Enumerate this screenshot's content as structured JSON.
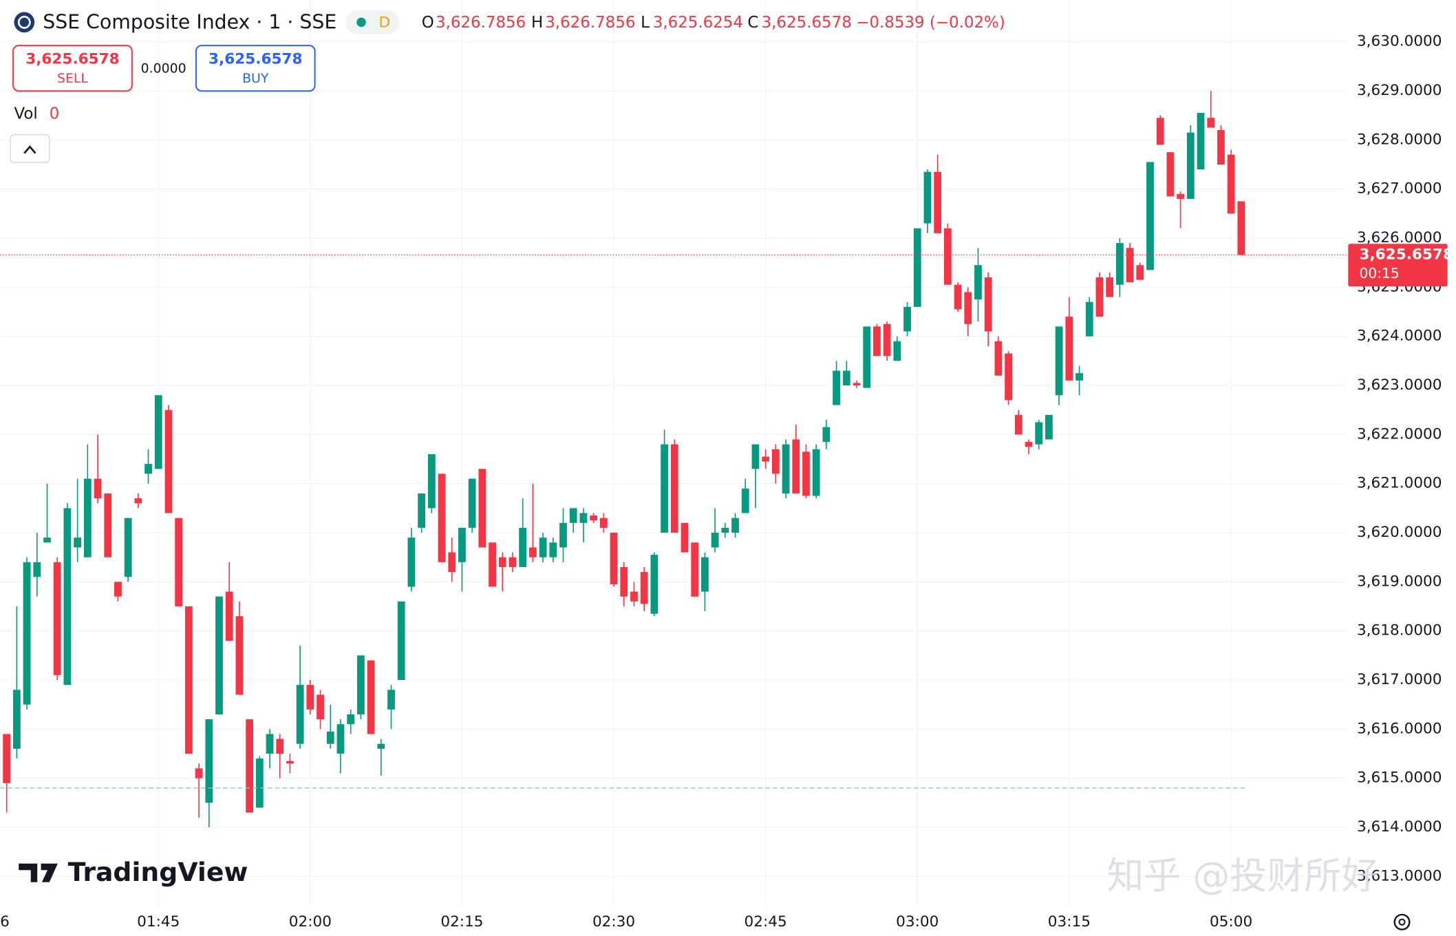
{
  "header": {
    "symbol": "SSE Composite Index · 1 · SSE",
    "interval_badge": "D",
    "open_label": "O",
    "open": "3,626.7856",
    "high_label": "H",
    "high": "3,626.7856",
    "low_label": "L",
    "low": "3,625.6254",
    "close_label": "C",
    "close": "3,625.6578",
    "change": "−0.8539 (−0.02%)"
  },
  "trade": {
    "sell_price": "3,625.6578",
    "sell_label": "SELL",
    "spread": "0.0000",
    "buy_price": "3,625.6578",
    "buy_label": "BUY"
  },
  "volume": {
    "label": "Vol",
    "value": "0"
  },
  "branding": {
    "logo": "TradingView",
    "watermark": "知乎 @投财所好"
  },
  "chart_data": {
    "type": "candlestick",
    "up_color": "#089981",
    "down_color": "#f23645",
    "ylim": [
      3612.41,
      3630.85
    ],
    "yticks": [
      {
        "value": 3613,
        "label": "3,613.0000"
      },
      {
        "value": 3614,
        "label": "3,614.0000"
      },
      {
        "value": 3615,
        "label": "3,615.0000"
      },
      {
        "value": 3616,
        "label": "3,616.0000"
      },
      {
        "value": 3617,
        "label": "3,617.0000"
      },
      {
        "value": 3618,
        "label": "3,618.0000"
      },
      {
        "value": 3619,
        "label": "3,619.0000"
      },
      {
        "value": 3620,
        "label": "3,620.0000"
      },
      {
        "value": 3621,
        "label": "3,621.0000"
      },
      {
        "value": 3622,
        "label": "3,622.0000"
      },
      {
        "value": 3623,
        "label": "3,623.0000"
      },
      {
        "value": 3624,
        "label": "3,624.0000"
      },
      {
        "value": 3625,
        "label": "3,625.0000"
      },
      {
        "value": 3626,
        "label": "3,626.0000"
      },
      {
        "value": 3627,
        "label": "3,627.0000"
      },
      {
        "value": 3628,
        "label": "3,628.0000"
      },
      {
        "value": 3629,
        "label": "3,629.0000"
      },
      {
        "value": 3630,
        "label": "3,630.0000"
      }
    ],
    "grid": true,
    "last_price": {
      "value": 3625.6578,
      "label": "3,625.6578",
      "countdown": "00:15"
    },
    "reference_line": 3614.8,
    "categories": [
      "6",
      null,
      null,
      null,
      null,
      null,
      null,
      null,
      null,
      null,
      null,
      null,
      null,
      null,
      null,
      "01:45",
      null,
      null,
      null,
      null,
      null,
      null,
      null,
      null,
      null,
      null,
      null,
      null,
      null,
      null,
      "02:00",
      null,
      null,
      null,
      null,
      null,
      null,
      null,
      null,
      null,
      null,
      null,
      null,
      null,
      null,
      "02:15",
      null,
      null,
      null,
      null,
      null,
      null,
      null,
      null,
      null,
      null,
      null,
      null,
      null,
      null,
      "02:30",
      null,
      null,
      null,
      null,
      null,
      null,
      null,
      null,
      null,
      null,
      null,
      null,
      null,
      null,
      "02:45",
      null,
      null,
      null,
      null,
      null,
      null,
      null,
      null,
      null,
      null,
      null,
      null,
      null,
      null,
      "03:00",
      null,
      null,
      null,
      null,
      null,
      null,
      null,
      null,
      null,
      null,
      null,
      null,
      null,
      null,
      "03:15",
      null,
      null,
      null,
      null,
      null,
      null,
      null,
      null,
      null,
      null,
      null,
      null,
      null,
      null,
      null,
      "05:00",
      null
    ],
    "ohlc": [
      [
        3615.9,
        3615.9,
        3614.3,
        3614.9
      ],
      [
        3615.6,
        3618.5,
        3615.4,
        3616.8
      ],
      [
        3616.5,
        3619.5,
        3616.4,
        3619.4
      ],
      [
        3619.1,
        3620.0,
        3618.7,
        3619.4
      ],
      [
        3619.8,
        3621.0,
        3619.8,
        3619.9
      ],
      [
        3619.4,
        3619.5,
        3617.0,
        3617.1
      ],
      [
        3616.9,
        3620.6,
        3616.9,
        3620.5
      ],
      [
        3619.7,
        3621.1,
        3619.4,
        3619.9
      ],
      [
        3619.5,
        3621.8,
        3619.5,
        3621.1
      ],
      [
        3621.1,
        3622.0,
        3620.6,
        3620.7
      ],
      [
        3620.8,
        3620.8,
        3619.5,
        3619.5
      ],
      [
        3619.0,
        3619.0,
        3618.6,
        3618.7
      ],
      [
        3619.1,
        3620.3,
        3619.0,
        3620.3
      ],
      [
        3620.7,
        3620.8,
        3620.5,
        3620.6
      ],
      [
        3621.2,
        3621.7,
        3621.0,
        3621.4
      ],
      [
        3621.3,
        3622.8,
        3621.3,
        3622.8
      ],
      [
        3622.5,
        3622.6,
        3620.4,
        3620.4
      ],
      [
        3620.3,
        3620.3,
        3618.5,
        3618.5
      ],
      [
        3618.5,
        3618.5,
        3615.5,
        3615.5
      ],
      [
        3615.2,
        3615.3,
        3614.2,
        3615.0
      ],
      [
        3614.5,
        3616.2,
        3614.0,
        3616.2
      ],
      [
        3616.3,
        3618.7,
        3616.3,
        3618.7
      ],
      [
        3618.8,
        3619.4,
        3617.8,
        3617.8
      ],
      [
        3618.3,
        3618.6,
        3616.7,
        3616.7
      ],
      [
        3616.2,
        3616.2,
        3614.3,
        3614.3
      ],
      [
        3614.4,
        3615.45,
        3614.4,
        3615.4
      ],
      [
        3615.5,
        3616.0,
        3615.2,
        3615.9
      ],
      [
        3615.8,
        3615.9,
        3615.0,
        3615.5
      ],
      [
        3615.35,
        3615.5,
        3615.1,
        3615.3
      ],
      [
        3615.7,
        3617.7,
        3615.6,
        3616.9
      ],
      [
        3616.9,
        3617.0,
        3616.3,
        3616.4
      ],
      [
        3616.7,
        3616.8,
        3616.0,
        3616.2
      ],
      [
        3615.7,
        3616.5,
        3615.6,
        3615.95
      ],
      [
        3615.5,
        3616.2,
        3615.1,
        3616.1
      ],
      [
        3616.1,
        3616.4,
        3615.9,
        3616.3
      ],
      [
        3616.3,
        3617.5,
        3616.2,
        3617.5
      ],
      [
        3617.4,
        3617.4,
        3615.9,
        3615.9
      ],
      [
        3615.6,
        3615.8,
        3615.05,
        3615.7
      ],
      [
        3616.4,
        3616.9,
        3616.0,
        3616.8
      ],
      [
        3617.0,
        3618.6,
        3617.0,
        3618.6
      ],
      [
        3618.9,
        3620.1,
        3618.8,
        3619.9
      ],
      [
        3620.1,
        3620.8,
        3620.0,
        3620.8
      ],
      [
        3620.5,
        3621.6,
        3620.4,
        3621.6
      ],
      [
        3621.2,
        3621.2,
        3619.4,
        3619.4
      ],
      [
        3619.6,
        3619.9,
        3619.0,
        3619.2
      ],
      [
        3619.4,
        3620.1,
        3618.8,
        3620.1
      ],
      [
        3620.1,
        3621.1,
        3620.0,
        3621.1
      ],
      [
        3621.3,
        3621.3,
        3619.7,
        3619.7
      ],
      [
        3619.8,
        3619.8,
        3618.9,
        3618.9
      ],
      [
        3619.5,
        3619.6,
        3618.8,
        3619.3
      ],
      [
        3619.5,
        3619.6,
        3619.2,
        3619.3
      ],
      [
        3619.3,
        3620.7,
        3619.3,
        3620.1
      ],
      [
        3619.7,
        3621.0,
        3619.4,
        3619.5
      ],
      [
        3619.5,
        3620.0,
        3619.4,
        3619.9
      ],
      [
        3619.5,
        3619.9,
        3619.4,
        3619.8
      ],
      [
        3619.7,
        3620.5,
        3619.4,
        3620.2
      ],
      [
        3620.2,
        3620.5,
        3620.0,
        3620.5
      ],
      [
        3620.2,
        3620.5,
        3619.8,
        3620.4
      ],
      [
        3620.35,
        3620.4,
        3620.2,
        3620.25
      ],
      [
        3620.3,
        3620.4,
        3620.0,
        3620.1
      ],
      [
        3620.0,
        3620.0,
        3618.9,
        3618.95
      ],
      [
        3619.3,
        3619.4,
        3618.5,
        3618.7
      ],
      [
        3618.8,
        3619.0,
        3618.5,
        3618.6
      ],
      [
        3619.2,
        3619.3,
        3618.4,
        3618.55
      ],
      [
        3618.35,
        3619.6,
        3618.3,
        3619.55
      ],
      [
        3620.0,
        3622.1,
        3620.0,
        3621.8
      ],
      [
        3621.8,
        3621.9,
        3620.0,
        3620.0
      ],
      [
        3620.2,
        3620.2,
        3619.6,
        3619.6
      ],
      [
        3619.8,
        3619.8,
        3618.7,
        3618.7
      ],
      [
        3618.8,
        3619.6,
        3618.4,
        3619.5
      ],
      [
        3619.7,
        3620.5,
        3619.6,
        3620.0
      ],
      [
        3620.0,
        3620.2,
        3619.9,
        3620.1
      ],
      [
        3620.0,
        3620.4,
        3619.9,
        3620.3
      ],
      [
        3620.4,
        3621.1,
        3620.4,
        3620.9
      ],
      [
        3621.3,
        3621.8,
        3620.5,
        3621.8
      ],
      [
        3621.55,
        3621.7,
        3621.3,
        3621.45
      ],
      [
        3621.7,
        3621.8,
        3621.0,
        3621.2
      ],
      [
        3620.8,
        3621.9,
        3620.7,
        3621.8
      ],
      [
        3621.9,
        3622.2,
        3620.8,
        3620.8
      ],
      [
        3621.65,
        3621.8,
        3620.7,
        3620.75
      ],
      [
        3620.75,
        3621.8,
        3620.7,
        3621.7
      ],
      [
        3621.85,
        3622.3,
        3621.7,
        3622.15
      ],
      [
        3622.6,
        3623.5,
        3622.6,
        3623.3
      ],
      [
        3623.0,
        3623.5,
        3623.0,
        3623.3
      ],
      [
        3623.05,
        3623.1,
        3622.95,
        3623.0
      ],
      [
        3622.95,
        3624.2,
        3622.95,
        3624.2
      ],
      [
        3624.2,
        3624.25,
        3623.6,
        3623.6
      ],
      [
        3624.25,
        3624.3,
        3623.5,
        3623.6
      ],
      [
        3623.5,
        3624.0,
        3623.5,
        3623.9
      ],
      [
        3624.1,
        3624.7,
        3624.0,
        3624.6
      ],
      [
        3624.6,
        3626.2,
        3624.6,
        3626.2
      ],
      [
        3626.3,
        3627.4,
        3626.1,
        3627.35
      ],
      [
        3627.35,
        3627.7,
        3626.1,
        3626.1
      ],
      [
        3626.2,
        3626.3,
        3625.05,
        3625.05
      ],
      [
        3625.05,
        3625.1,
        3624.5,
        3624.55
      ],
      [
        3624.9,
        3625.0,
        3624.0,
        3624.25
      ],
      [
        3624.75,
        3625.8,
        3624.3,
        3625.45
      ],
      [
        3625.2,
        3625.3,
        3623.8,
        3624.1
      ],
      [
        3623.9,
        3624.0,
        3623.2,
        3623.2
      ],
      [
        3623.65,
        3623.7,
        3622.6,
        3622.7
      ],
      [
        3622.4,
        3622.5,
        3622.0,
        3622.0
      ],
      [
        3621.85,
        3621.9,
        3621.6,
        3621.75
      ],
      [
        3621.8,
        3622.3,
        3621.7,
        3622.25
      ],
      [
        3621.9,
        3622.4,
        3621.9,
        3622.4
      ],
      [
        3622.8,
        3624.2,
        3622.6,
        3624.2
      ],
      [
        3624.4,
        3624.8,
        3623.1,
        3623.1
      ],
      [
        3623.1,
        3623.4,
        3622.8,
        3623.25
      ],
      [
        3624.0,
        3624.8,
        3624.0,
        3624.7
      ],
      [
        3625.2,
        3625.3,
        3624.4,
        3624.4
      ],
      [
        3625.2,
        3625.3,
        3624.8,
        3624.8
      ],
      [
        3625.05,
        3626.0,
        3624.8,
        3625.9
      ],
      [
        3625.8,
        3625.9,
        3625.1,
        3625.1
      ],
      [
        3625.45,
        3625.5,
        3625.15,
        3625.15
      ],
      [
        3625.35,
        3627.55,
        3625.35,
        3627.55
      ],
      [
        3628.45,
        3628.5,
        3627.9,
        3627.9
      ],
      [
        3627.75,
        3627.75,
        3626.85,
        3626.85
      ],
      [
        3626.9,
        3626.95,
        3626.2,
        3626.8
      ],
      [
        3626.8,
        3628.3,
        3626.8,
        3628.15
      ],
      [
        3627.4,
        3628.55,
        3627.4,
        3628.55
      ],
      [
        3628.45,
        3629.0,
        3628.25,
        3628.25
      ],
      [
        3628.2,
        3628.3,
        3627.5,
        3627.5
      ],
      [
        3627.7,
        3627.8,
        3626.5,
        3626.5
      ],
      [
        3626.75,
        3626.75,
        3625.6578,
        3625.6578
      ]
    ]
  }
}
